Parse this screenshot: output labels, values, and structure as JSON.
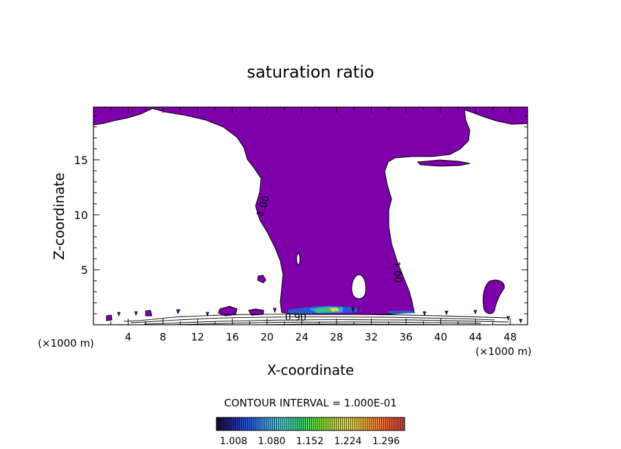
{
  "chart_data": {
    "type": "heatmap",
    "title": "saturation ratio",
    "xlabel": "X-coordinate",
    "ylabel": "Z-coordinate",
    "x_unit_left": "(×1000 m)",
    "x_unit_right": "(×1000 m)",
    "xlim": [
      0,
      50
    ],
    "ylim": [
      0,
      19.8
    ],
    "x_ticks": [
      4,
      8,
      12,
      16,
      20,
      24,
      28,
      32,
      36,
      40,
      44,
      48
    ],
    "y_ticks": [
      5,
      10,
      15
    ],
    "contour_interval_text": "CONTOUR INTERVAL = 1.000E-01",
    "contour_labels": [
      {
        "text": "1.00",
        "x": 19.5,
        "z": 10.8,
        "angle": -72
      },
      {
        "text": "1.00",
        "x": 35.0,
        "z": 4.8,
        "angle": 85
      },
      {
        "text": "0.90",
        "x": 23.3,
        "z": 0.7,
        "angle": 0
      }
    ],
    "colorbar": {
      "tick_labels": [
        "1.008",
        "1.080",
        "1.152",
        "1.224",
        "1.296"
      ],
      "colors": [
        "#1a0a40",
        "#1e2a8c",
        "#2a5ad2",
        "#3aa0e6",
        "#3ccfc0",
        "#3cc870",
        "#78d83c",
        "#bcd83c",
        "#e8c83c",
        "#e8963c",
        "#e8643c",
        "#d23c3c"
      ]
    },
    "fill_color": "#7d00aa",
    "grid": false
  }
}
